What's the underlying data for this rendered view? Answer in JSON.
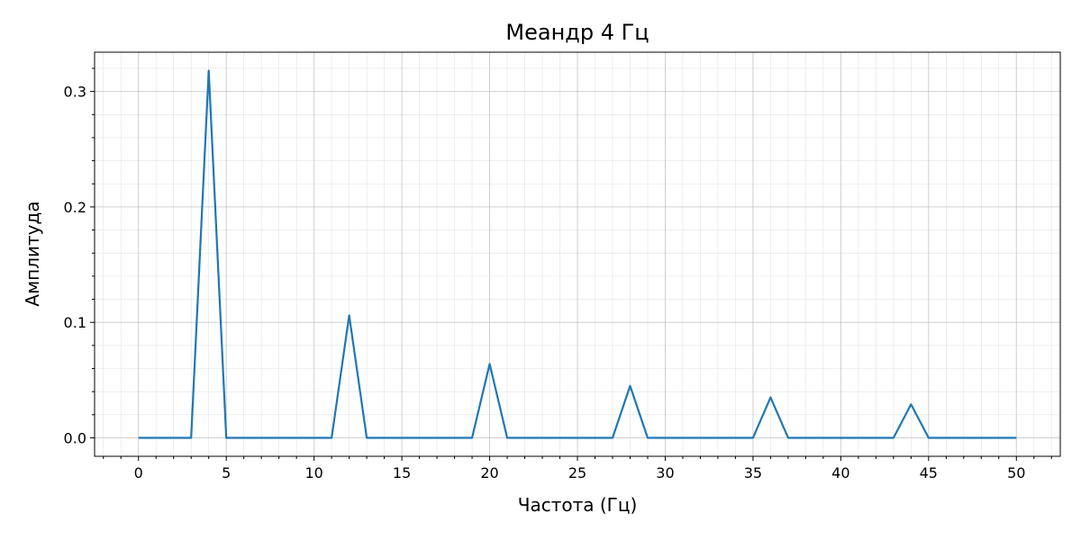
{
  "chart_data": {
    "type": "line",
    "title": "Меандр 4 Гц",
    "xlabel": "Частота (Гц)",
    "ylabel": "Амплитуда",
    "xlim": [
      -2.5,
      52.5
    ],
    "ylim": [
      -0.016,
      0.334
    ],
    "x_ticks": [
      0,
      5,
      10,
      15,
      20,
      25,
      30,
      35,
      40,
      45,
      50
    ],
    "x_tick_labels": [
      "0",
      "5",
      "10",
      "15",
      "20",
      "25",
      "30",
      "35",
      "40",
      "45",
      "50"
    ],
    "y_ticks": [
      0.0,
      0.1,
      0.2,
      0.3
    ],
    "y_tick_labels": [
      "0.0",
      "0.1",
      "0.2",
      "0.3"
    ],
    "grid": true,
    "minor_grid": true,
    "series": [
      {
        "name": "Амплитуда",
        "color": "#1f77b4",
        "x": [
          0,
          1,
          2,
          3,
          4,
          5,
          6,
          7,
          8,
          9,
          10,
          11,
          12,
          13,
          14,
          15,
          16,
          17,
          18,
          19,
          20,
          21,
          22,
          23,
          24,
          25,
          26,
          27,
          28,
          29,
          30,
          31,
          32,
          33,
          34,
          35,
          36,
          37,
          38,
          39,
          40,
          41,
          42,
          43,
          44,
          45,
          46,
          47,
          48,
          49,
          50
        ],
        "values": [
          0,
          0,
          0,
          0,
          0.318,
          0,
          0,
          0,
          0,
          0,
          0,
          0,
          0.106,
          0,
          0,
          0,
          0,
          0,
          0,
          0,
          0.064,
          0,
          0,
          0,
          0,
          0,
          0,
          0,
          0.045,
          0,
          0,
          0,
          0,
          0,
          0,
          0,
          0.035,
          0,
          0,
          0,
          0,
          0,
          0,
          0,
          0.029,
          0,
          0,
          0,
          0,
          0,
          0
        ]
      }
    ]
  }
}
